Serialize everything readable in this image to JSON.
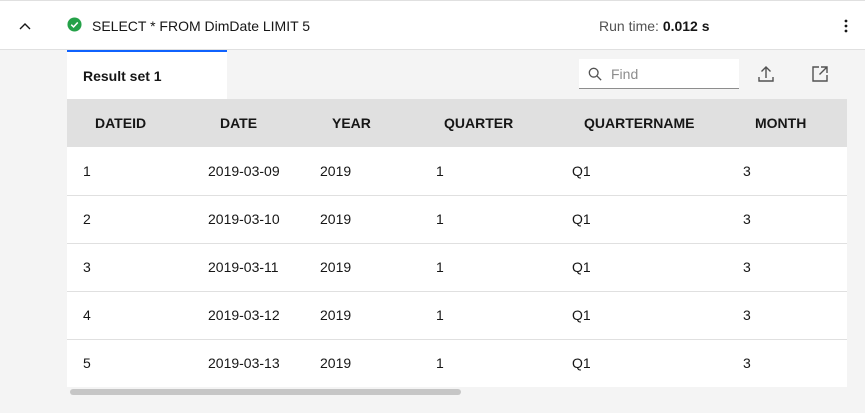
{
  "header": {
    "query": "SELECT * FROM DimDate LIMIT 5",
    "runtime_label": "Run time:",
    "runtime_value": "0.012 s",
    "status": "success",
    "status_color": "#24a148"
  },
  "toolbar": {
    "tab_label": "Result set 1",
    "search_placeholder": "Find",
    "search_value": ""
  },
  "table": {
    "columns": [
      "DATEID",
      "DATE",
      "YEAR",
      "QUARTER",
      "QUARTERNAME",
      "MONTH"
    ],
    "rows": [
      [
        "1",
        "2019-03-09",
        "2019",
        "1",
        "Q1",
        "3"
      ],
      [
        "2",
        "2019-03-10",
        "2019",
        "1",
        "Q1",
        "3"
      ],
      [
        "3",
        "2019-03-11",
        "2019",
        "1",
        "Q1",
        "3"
      ],
      [
        "4",
        "2019-03-12",
        "2019",
        "1",
        "Q1",
        "3"
      ],
      [
        "5",
        "2019-03-13",
        "2019",
        "1",
        "Q1",
        "3"
      ]
    ]
  }
}
